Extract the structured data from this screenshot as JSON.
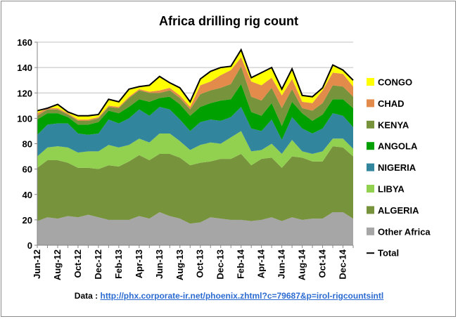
{
  "chart_data": {
    "type": "area",
    "stacked": true,
    "title": "Africa drilling rig count",
    "xlabel": "",
    "ylabel": "",
    "ylim": [
      0,
      160
    ],
    "yticks": [
      0,
      20,
      40,
      60,
      80,
      100,
      120,
      140,
      160
    ],
    "grid": true,
    "legend_position": "right",
    "x": [
      "Jun-12",
      "Jul-12",
      "Aug-12",
      "Sep-12",
      "Oct-12",
      "Nov-12",
      "Dec-12",
      "Jan-13",
      "Feb-13",
      "Mar-13",
      "Apr-13",
      "May-13",
      "Jun-13",
      "Jul-13",
      "Aug-13",
      "Sep-13",
      "Oct-13",
      "Nov-13",
      "Dec-13",
      "Jan-14",
      "Feb-14",
      "Mar-14",
      "Apr-14",
      "May-14",
      "Jun-14",
      "Jul-14",
      "Aug-14",
      "Sep-14",
      "Oct-14",
      "Nov-14",
      "Dec-14",
      "Jan-15"
    ],
    "x_tick_labels": [
      "Jun-12",
      "Aug-12",
      "Oct-12",
      "Dec-12",
      "Feb-13",
      "Apr-13",
      "Jun-13",
      "Aug-13",
      "Oct-13",
      "Dec-13",
      "Feb-14",
      "Apr-14",
      "Jun-14",
      "Aug-14",
      "Oct-14",
      "Dec-14"
    ],
    "series": [
      {
        "name": "Other Africa",
        "color": "#a6a6a6",
        "values": [
          19,
          22,
          21,
          23,
          22,
          24,
          22,
          20,
          20,
          20,
          23,
          21,
          26,
          23,
          21,
          17,
          18,
          22,
          21,
          20,
          20,
          19,
          20,
          22,
          19,
          22,
          20,
          21,
          21,
          26,
          26,
          21
        ]
      },
      {
        "name": "ALGERIA",
        "color": "#77933c",
        "values": [
          42,
          45,
          46,
          42,
          39,
          37,
          38,
          43,
          42,
          46,
          48,
          46,
          46,
          49,
          48,
          46,
          47,
          44,
          47,
          48,
          52,
          44,
          48,
          47,
          42,
          48,
          49,
          45,
          45,
          52,
          51,
          49
        ]
      },
      {
        "name": "LIBYA",
        "color": "#92d050",
        "values": [
          9,
          10,
          11,
          12,
          12,
          13,
          14,
          16,
          15,
          13,
          13,
          14,
          16,
          16,
          13,
          12,
          14,
          15,
          12,
          17,
          18,
          11,
          7,
          11,
          11,
          13,
          5,
          6,
          8,
          6,
          7,
          6
        ]
      },
      {
        "name": "NIGERIA",
        "color": "#31859c",
        "values": [
          17,
          18,
          18,
          19,
          15,
          13,
          14,
          20,
          19,
          21,
          23,
          21,
          21,
          19,
          17,
          15,
          18,
          18,
          18,
          16,
          19,
          18,
          15,
          19,
          11,
          18,
          18,
          16,
          18,
          20,
          18,
          17
        ]
      },
      {
        "name": "ANGOLA",
        "color": "#00a000",
        "values": [
          12,
          9,
          8,
          5,
          7,
          8,
          9,
          7,
          8,
          9,
          8,
          11,
          7,
          10,
          12,
          12,
          12,
          13,
          16,
          14,
          18,
          13,
          12,
          13,
          11,
          12,
          12,
          10,
          11,
          11,
          13,
          15
        ]
      },
      {
        "name": "KENYA",
        "color": "#77933c",
        "values": [
          3,
          3,
          3,
          2,
          3,
          3,
          3,
          3,
          4,
          7,
          7,
          7,
          4,
          5,
          5,
          5,
          10,
          10,
          10,
          12,
          14,
          12,
          12,
          12,
          14,
          10,
          4,
          8,
          9,
          11,
          10,
          9
        ]
      },
      {
        "name": "CHAD",
        "color": "#e38b4a",
        "values": [
          2,
          1,
          1,
          1,
          1,
          1,
          1,
          1,
          1,
          1,
          1,
          1,
          2,
          2,
          2,
          2,
          7,
          7,
          10,
          11,
          7,
          12,
          12,
          8,
          10,
          8,
          5,
          6,
          10,
          10,
          10,
          8
        ]
      },
      {
        "name": "CONGO",
        "color": "#ffff00",
        "values": [
          2,
          0,
          3,
          1,
          3,
          3,
          2,
          5,
          4,
          6,
          2,
          5,
          11,
          4,
          6,
          4,
          5,
          8,
          6,
          3,
          6,
          3,
          10,
          8,
          5,
          8,
          5,
          5,
          2,
          6,
          3,
          5
        ]
      }
    ],
    "total": {
      "name": "Total",
      "color": "#000000",
      "values": [
        106,
        108,
        111,
        105,
        102,
        102,
        103,
        115,
        113,
        123,
        125,
        126,
        133,
        128,
        124,
        113,
        131,
        137,
        140,
        141,
        154,
        132,
        136,
        140,
        123,
        139,
        118,
        117,
        124,
        142,
        138,
        130
      ]
    },
    "source_label": "Data : ",
    "source_url": "http://phx.corporate-ir.net/phoenix.zhtml?c=79687&p=irol-rigcountsintl"
  }
}
